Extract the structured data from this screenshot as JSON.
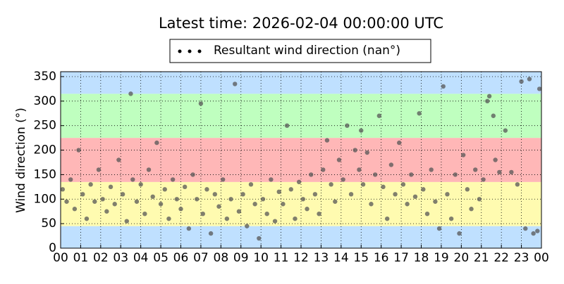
{
  "chart_data": {
    "type": "scatter",
    "title": "Latest time: 2026-02-04 00:00:00 UTC",
    "ylabel": "Wind direction (°)",
    "xlim": [
      0,
      24
    ],
    "ylim": [
      0,
      360
    ],
    "xticks": [
      {
        "value": 0,
        "label": "00"
      },
      {
        "value": 1,
        "label": "01"
      },
      {
        "value": 2,
        "label": "02"
      },
      {
        "value": 3,
        "label": "03"
      },
      {
        "value": 4,
        "label": "04"
      },
      {
        "value": 5,
        "label": "05"
      },
      {
        "value": 6,
        "label": "06"
      },
      {
        "value": 7,
        "label": "07"
      },
      {
        "value": 8,
        "label": "08"
      },
      {
        "value": 9,
        "label": "09"
      },
      {
        "value": 10,
        "label": "10"
      },
      {
        "value": 11,
        "label": "11"
      },
      {
        "value": 12,
        "label": "12"
      },
      {
        "value": 13,
        "label": "13"
      },
      {
        "value": 14,
        "label": "14"
      },
      {
        "value": 15,
        "label": "15"
      },
      {
        "value": 16,
        "label": "16"
      },
      {
        "value": 17,
        "label": "17"
      },
      {
        "value": 18,
        "label": "18"
      },
      {
        "value": 19,
        "label": "19"
      },
      {
        "value": 20,
        "label": "20"
      },
      {
        "value": 21,
        "label": "21"
      },
      {
        "value": 22,
        "label": "22"
      },
      {
        "value": 23,
        "label": "23"
      },
      {
        "value": 24,
        "label": "00"
      }
    ],
    "yticks": [
      0,
      50,
      100,
      150,
      200,
      250,
      300,
      350
    ],
    "grid": true,
    "bands": [
      {
        "from": 0,
        "to": 45,
        "color": "#bfe0ff"
      },
      {
        "from": 45,
        "to": 135,
        "color": "#fffbb0"
      },
      {
        "from": 135,
        "to": 225,
        "color": "#ffb7b7"
      },
      {
        "from": 225,
        "to": 315,
        "color": "#bfffbf"
      },
      {
        "from": 315,
        "to": 360,
        "color": "#bfe0ff"
      }
    ],
    "x": [
      0.1,
      0.3,
      0.5,
      0.7,
      0.9,
      1.1,
      1.3,
      1.5,
      1.7,
      1.9,
      2.1,
      2.3,
      2.5,
      2.7,
      2.9,
      3.1,
      3.3,
      3.5,
      3.6,
      3.8,
      4.0,
      4.2,
      4.4,
      4.6,
      4.8,
      5.0,
      5.2,
      5.4,
      5.6,
      5.8,
      6.0,
      6.2,
      6.4,
      6.6,
      6.8,
      7.0,
      7.1,
      7.3,
      7.5,
      7.7,
      7.9,
      8.1,
      8.3,
      8.5,
      8.7,
      8.9,
      9.1,
      9.3,
      9.5,
      9.7,
      9.9,
      10.1,
      10.3,
      10.5,
      10.7,
      10.9,
      11.1,
      11.3,
      11.5,
      11.7,
      11.9,
      12.1,
      12.3,
      12.5,
      12.7,
      12.9,
      13.1,
      13.3,
      13.5,
      13.7,
      13.9,
      14.1,
      14.3,
      14.5,
      14.7,
      14.9,
      15.0,
      15.1,
      15.3,
      15.5,
      15.7,
      15.9,
      16.1,
      16.3,
      16.5,
      16.7,
      16.9,
      17.1,
      17.3,
      17.5,
      17.7,
      17.9,
      18.1,
      18.3,
      18.5,
      18.7,
      18.9,
      19.1,
      19.3,
      19.5,
      19.7,
      19.9,
      20.1,
      20.3,
      20.5,
      20.7,
      20.9,
      21.1,
      21.3,
      21.4,
      21.6,
      21.7,
      21.9,
      22.2,
      22.5,
      22.8,
      23.0,
      23.2,
      23.4,
      23.6,
      23.8,
      23.9
    ],
    "series": [
      {
        "name": "Resultant wind direction (nan°)",
        "color": "#555555",
        "values": [
          120,
          95,
          140,
          80,
          200,
          110,
          60,
          130,
          95,
          160,
          100,
          75,
          125,
          90,
          180,
          110,
          55,
          315,
          140,
          95,
          130,
          70,
          160,
          105,
          215,
          90,
          120,
          60,
          140,
          100,
          80,
          125,
          40,
          150,
          100,
          295,
          70,
          120,
          30,
          110,
          85,
          140,
          60,
          100,
          335,
          75,
          110,
          45,
          130,
          90,
          20,
          100,
          70,
          140,
          55,
          115,
          90,
          250,
          120,
          60,
          135,
          100,
          80,
          150,
          110,
          70,
          160,
          220,
          130,
          95,
          180,
          140,
          250,
          110,
          200,
          160,
          240,
          130,
          195,
          90,
          150,
          270,
          125,
          60,
          170,
          110,
          215,
          130,
          90,
          150,
          105,
          275,
          120,
          70,
          160,
          95,
          40,
          330,
          110,
          60,
          150,
          30,
          190,
          120,
          80,
          160,
          100,
          140,
          300,
          310,
          270,
          180,
          155,
          240,
          155,
          130,
          340,
          40,
          345,
          30,
          35,
          325
        ]
      }
    ]
  }
}
